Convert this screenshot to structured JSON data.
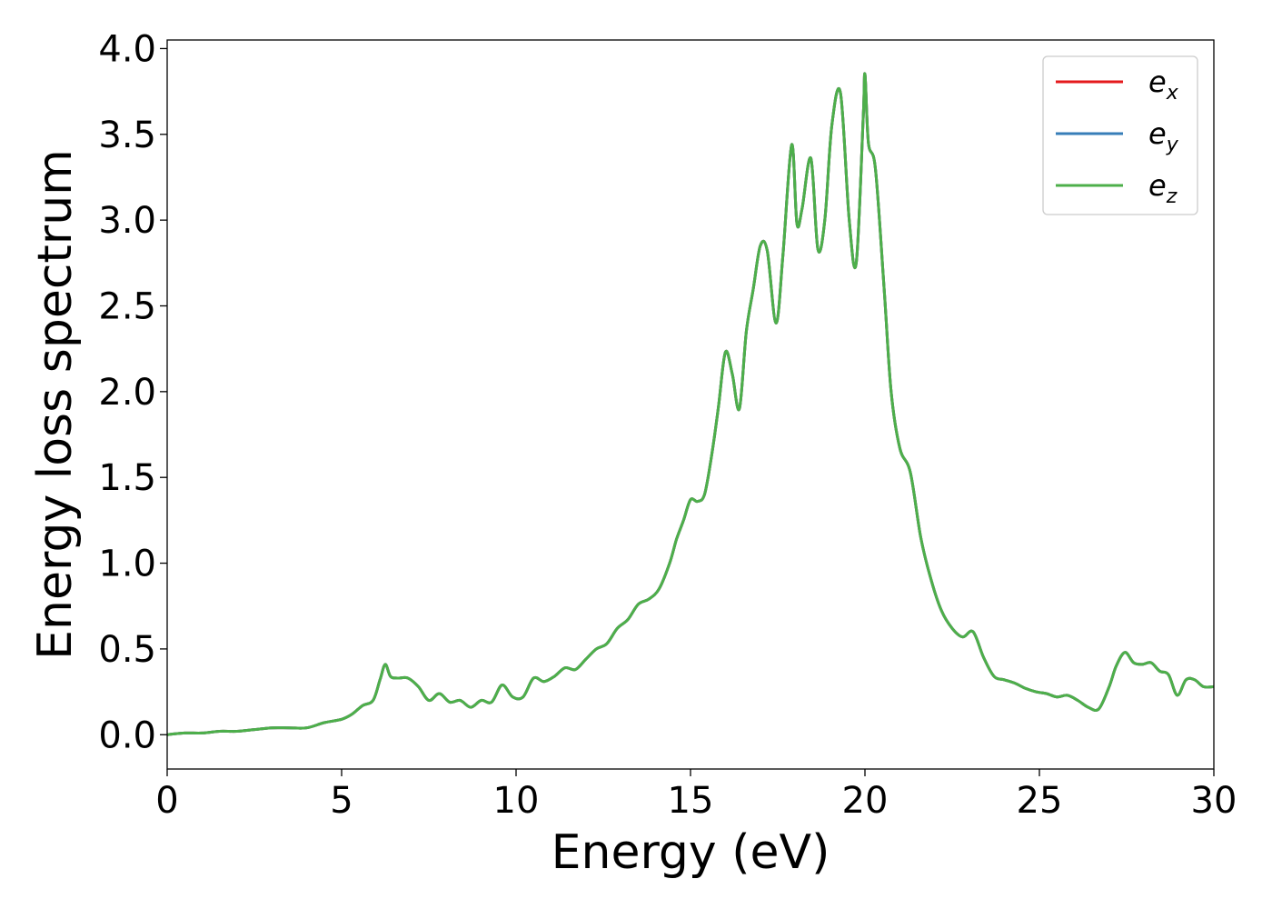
{
  "chart_data": {
    "type": "line",
    "title": "",
    "xlabel": "Energy (eV)",
    "ylabel": "Energy loss spectrum",
    "xlim": [
      0,
      30
    ],
    "ylim": [
      -0.2,
      4.05
    ],
    "xticks": [
      "0",
      "5",
      "10",
      "15",
      "20",
      "25",
      "30"
    ],
    "yticks": [
      "0.0",
      "0.5",
      "1.0",
      "1.5",
      "2.0",
      "2.5",
      "3.0",
      "3.5",
      "4.0"
    ],
    "grid": false,
    "legend_position": "top-right",
    "legend": [
      {
        "base": "e",
        "sub": "x",
        "color": "#e41a1c"
      },
      {
        "base": "e",
        "sub": "y",
        "color": "#377eb8"
      },
      {
        "base": "e",
        "sub": "z",
        "color": "#4daf4a"
      }
    ],
    "x": [
      0,
      0.5,
      1.0,
      1.5,
      2.0,
      2.5,
      3.0,
      3.5,
      4.0,
      4.5,
      5.0,
      5.3,
      5.6,
      5.9,
      6.1,
      6.25,
      6.4,
      6.6,
      6.9,
      7.2,
      7.5,
      7.8,
      8.1,
      8.4,
      8.7,
      9.0,
      9.3,
      9.6,
      9.9,
      10.2,
      10.5,
      10.8,
      11.1,
      11.4,
      11.7,
      12.0,
      12.3,
      12.6,
      12.9,
      13.2,
      13.5,
      13.8,
      14.1,
      14.4,
      14.6,
      14.8,
      15.0,
      15.2,
      15.4,
      15.6,
      15.8,
      16.0,
      16.2,
      16.4,
      16.6,
      16.8,
      17.0,
      17.2,
      17.45,
      17.65,
      17.9,
      18.05,
      18.2,
      18.45,
      18.65,
      18.85,
      19.05,
      19.3,
      19.55,
      19.75,
      19.95,
      20.0,
      20.1,
      20.3,
      20.55,
      20.75,
      21.0,
      21.3,
      21.6,
      21.9,
      22.2,
      22.5,
      22.8,
      23.1,
      23.4,
      23.7,
      24.0,
      24.3,
      24.6,
      24.9,
      25.2,
      25.5,
      25.8,
      26.1,
      26.4,
      26.7,
      27.0,
      27.2,
      27.45,
      27.7,
      27.95,
      28.2,
      28.45,
      28.7,
      28.95,
      29.2,
      29.45,
      29.7,
      30.0
    ],
    "series": [
      {
        "name": "",
        "color": "#e41a1c",
        "values": [
          0.0,
          0.01,
          0.01,
          0.02,
          0.02,
          0.03,
          0.04,
          0.04,
          0.04,
          0.07,
          0.09,
          0.12,
          0.17,
          0.2,
          0.32,
          0.41,
          0.34,
          0.33,
          0.33,
          0.28,
          0.2,
          0.24,
          0.19,
          0.2,
          0.16,
          0.2,
          0.19,
          0.29,
          0.22,
          0.22,
          0.33,
          0.31,
          0.34,
          0.39,
          0.38,
          0.44,
          0.5,
          0.53,
          0.62,
          0.67,
          0.76,
          0.79,
          0.85,
          1.0,
          1.14,
          1.25,
          1.37,
          1.36,
          1.4,
          1.62,
          1.91,
          2.23,
          2.1,
          1.9,
          2.35,
          2.6,
          2.85,
          2.82,
          2.4,
          2.8,
          3.44,
          2.98,
          3.07,
          3.36,
          2.83,
          3.0,
          3.55,
          3.74,
          3.0,
          2.75,
          3.6,
          3.85,
          3.45,
          3.3,
          2.6,
          2.0,
          1.67,
          1.53,
          1.15,
          0.9,
          0.72,
          0.62,
          0.57,
          0.6,
          0.45,
          0.34,
          0.32,
          0.3,
          0.27,
          0.25,
          0.24,
          0.22,
          0.23,
          0.2,
          0.16,
          0.15,
          0.28,
          0.4,
          0.48,
          0.42,
          0.41,
          0.42,
          0.37,
          0.35,
          0.23,
          0.32,
          0.32,
          0.28,
          0.28
        ]
      },
      {
        "name": "",
        "color": "#377eb8",
        "values": [
          0.0,
          0.01,
          0.01,
          0.02,
          0.02,
          0.03,
          0.04,
          0.04,
          0.04,
          0.07,
          0.09,
          0.12,
          0.17,
          0.2,
          0.32,
          0.41,
          0.34,
          0.33,
          0.33,
          0.28,
          0.2,
          0.24,
          0.19,
          0.2,
          0.16,
          0.2,
          0.19,
          0.29,
          0.22,
          0.22,
          0.33,
          0.31,
          0.34,
          0.39,
          0.38,
          0.44,
          0.5,
          0.53,
          0.62,
          0.67,
          0.76,
          0.79,
          0.85,
          1.0,
          1.14,
          1.25,
          1.37,
          1.36,
          1.4,
          1.62,
          1.91,
          2.23,
          2.1,
          1.9,
          2.35,
          2.6,
          2.85,
          2.82,
          2.4,
          2.8,
          3.44,
          2.98,
          3.07,
          3.36,
          2.83,
          3.0,
          3.55,
          3.74,
          3.0,
          2.75,
          3.6,
          3.85,
          3.45,
          3.3,
          2.6,
          2.0,
          1.67,
          1.53,
          1.15,
          0.9,
          0.72,
          0.62,
          0.57,
          0.6,
          0.45,
          0.34,
          0.32,
          0.3,
          0.27,
          0.25,
          0.24,
          0.22,
          0.23,
          0.2,
          0.16,
          0.15,
          0.28,
          0.4,
          0.48,
          0.42,
          0.41,
          0.42,
          0.37,
          0.35,
          0.23,
          0.32,
          0.32,
          0.28,
          0.28
        ]
      },
      {
        "name": "",
        "color": "#4daf4a",
        "values": [
          0.0,
          0.01,
          0.01,
          0.02,
          0.02,
          0.03,
          0.04,
          0.04,
          0.04,
          0.07,
          0.09,
          0.12,
          0.17,
          0.2,
          0.32,
          0.41,
          0.34,
          0.33,
          0.33,
          0.28,
          0.2,
          0.24,
          0.19,
          0.2,
          0.16,
          0.2,
          0.19,
          0.29,
          0.22,
          0.22,
          0.33,
          0.31,
          0.34,
          0.39,
          0.38,
          0.44,
          0.5,
          0.53,
          0.62,
          0.67,
          0.76,
          0.79,
          0.85,
          1.0,
          1.14,
          1.25,
          1.37,
          1.36,
          1.4,
          1.62,
          1.91,
          2.23,
          2.1,
          1.9,
          2.35,
          2.6,
          2.85,
          2.82,
          2.4,
          2.8,
          3.44,
          2.98,
          3.07,
          3.36,
          2.83,
          3.0,
          3.55,
          3.74,
          3.0,
          2.75,
          3.6,
          3.85,
          3.45,
          3.3,
          2.6,
          2.0,
          1.67,
          1.53,
          1.15,
          0.9,
          0.72,
          0.62,
          0.57,
          0.6,
          0.45,
          0.34,
          0.32,
          0.3,
          0.27,
          0.25,
          0.24,
          0.22,
          0.23,
          0.2,
          0.16,
          0.15,
          0.28,
          0.4,
          0.48,
          0.42,
          0.41,
          0.42,
          0.37,
          0.35,
          0.23,
          0.32,
          0.32,
          0.28,
          0.28
        ]
      }
    ]
  }
}
